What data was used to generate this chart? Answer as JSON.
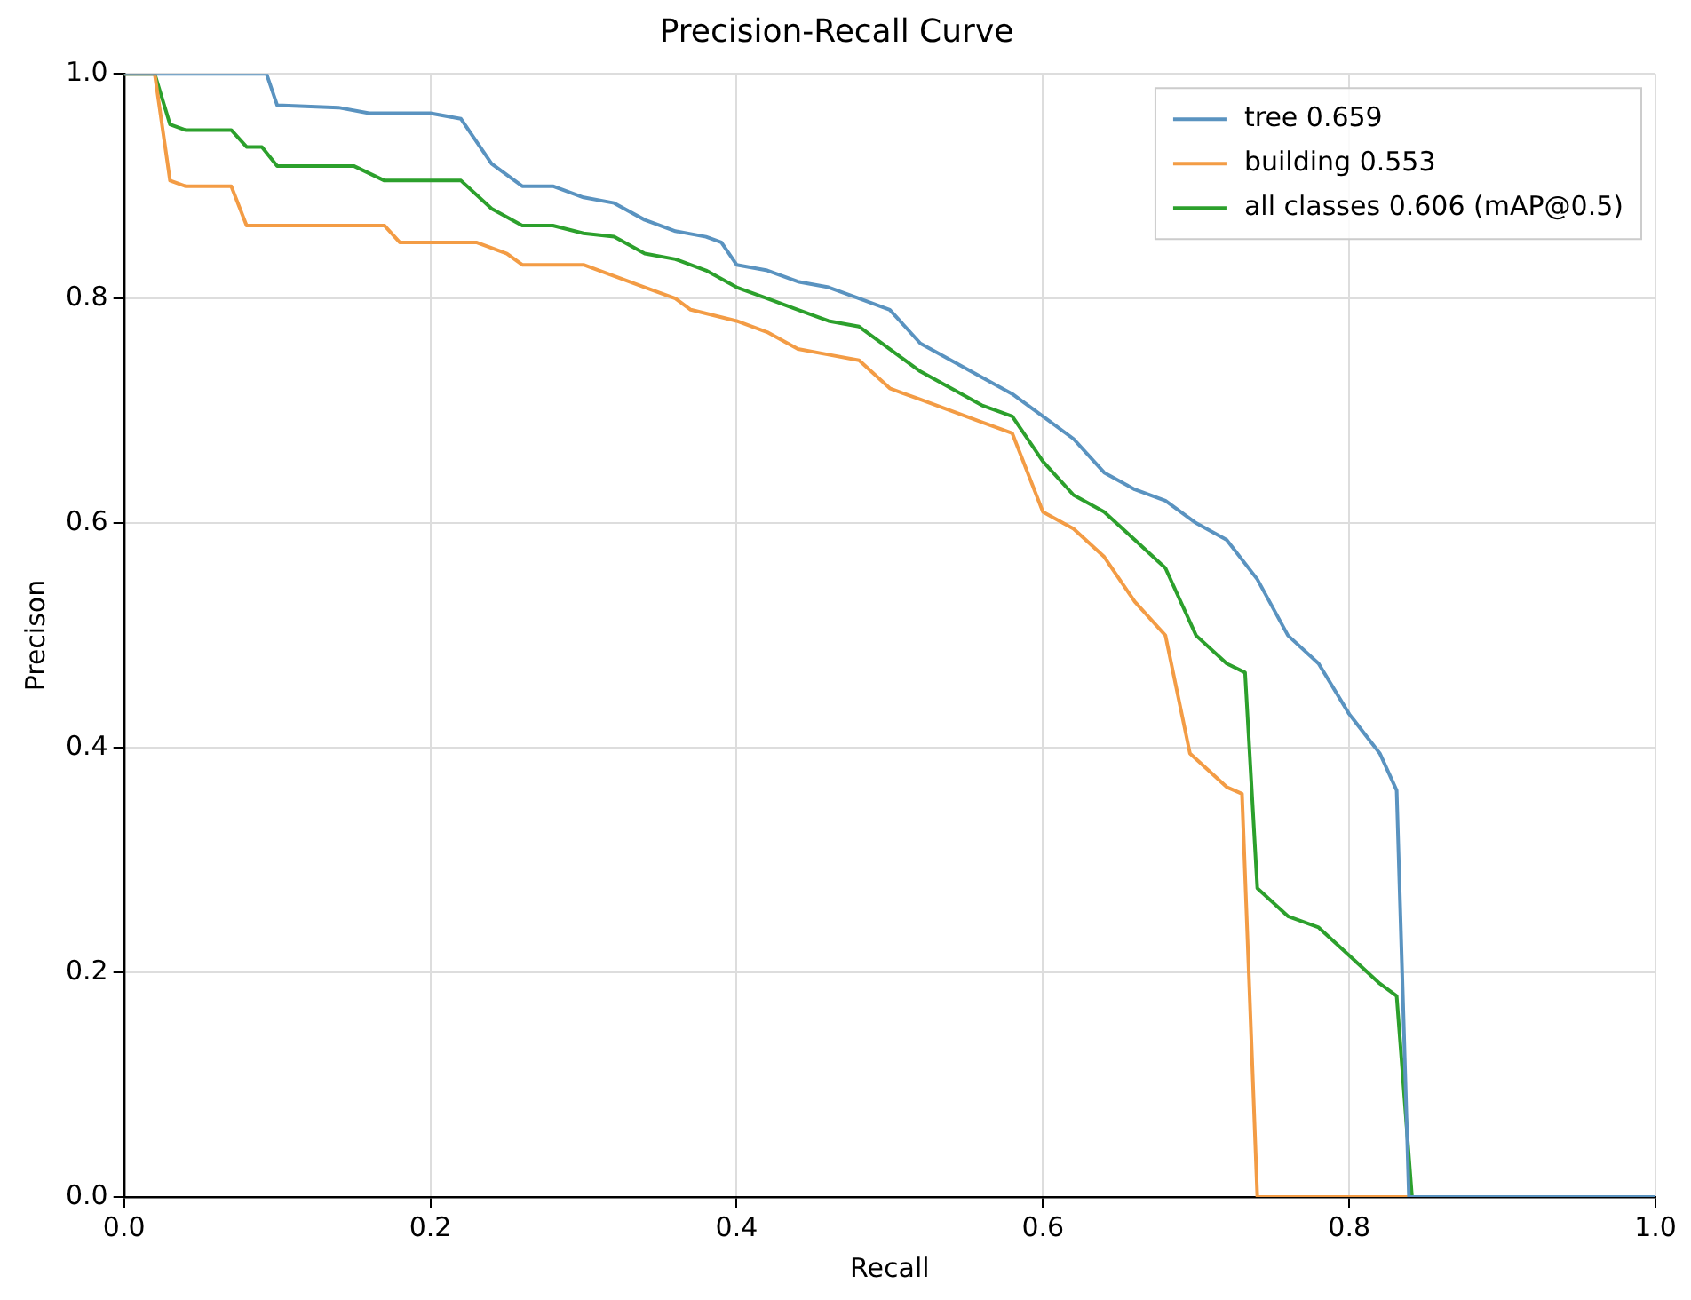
{
  "chart_data": {
    "type": "line",
    "title": "Precision-Recall Curve",
    "xlabel": "Recall",
    "ylabel": "Precison",
    "xlim": [
      0,
      1
    ],
    "ylim": [
      0,
      1
    ],
    "xticks": [
      {
        "value": 0,
        "label": "0.0"
      },
      {
        "value": 0.2,
        "label": "0.2"
      },
      {
        "value": 0.4,
        "label": "0.4"
      },
      {
        "value": 0.6,
        "label": "0.6"
      },
      {
        "value": 0.8,
        "label": "0.8"
      },
      {
        "value": 1,
        "label": "1.0"
      }
    ],
    "yticks": [
      {
        "value": 0,
        "label": "0.0"
      },
      {
        "value": 0.2,
        "label": "0.2"
      },
      {
        "value": 0.4,
        "label": "0.4"
      },
      {
        "value": 0.6,
        "label": "0.6"
      },
      {
        "value": 0.8,
        "label": "0.8"
      },
      {
        "value": 1,
        "label": "1.0"
      }
    ],
    "grid": true,
    "legend": "top right",
    "marker": "none",
    "line_style": "solid",
    "series": [
      {
        "name": "tree 0.659",
        "color": "#5a93c0",
        "x": [
          0,
          0.093,
          0.1,
          0.14,
          0.16,
          0.2,
          0.22,
          0.24,
          0.26,
          0.28,
          0.3,
          0.32,
          0.34,
          0.36,
          0.38,
          0.39,
          0.4,
          0.42,
          0.44,
          0.46,
          0.48,
          0.5,
          0.52,
          0.54,
          0.56,
          0.58,
          0.6,
          0.62,
          0.64,
          0.66,
          0.68,
          0.7,
          0.72,
          0.74,
          0.76,
          0.78,
          0.8,
          0.82,
          0.831,
          0.839,
          1
        ],
        "values": [
          1,
          1,
          0.972,
          0.97,
          0.965,
          0.965,
          0.96,
          0.92,
          0.9,
          0.9,
          0.89,
          0.885,
          0.87,
          0.86,
          0.855,
          0.85,
          0.83,
          0.825,
          0.815,
          0.81,
          0.8,
          0.79,
          0.76,
          0.745,
          0.73,
          0.715,
          0.695,
          0.675,
          0.645,
          0.63,
          0.62,
          0.6,
          0.585,
          0.55,
          0.5,
          0.475,
          0.43,
          0.395,
          0.362,
          0,
          0
        ]
      },
      {
        "name": "building 0.553",
        "color": "#f39c45",
        "x": [
          0,
          0.02,
          0.03,
          0.04,
          0.07,
          0.08,
          0.17,
          0.18,
          0.23,
          0.25,
          0.26,
          0.3,
          0.32,
          0.34,
          0.36,
          0.37,
          0.4,
          0.42,
          0.44,
          0.46,
          0.48,
          0.5,
          0.52,
          0.54,
          0.56,
          0.58,
          0.6,
          0.62,
          0.64,
          0.66,
          0.68,
          0.696,
          0.72,
          0.73,
          0.74,
          1
        ],
        "values": [
          1,
          1,
          0.905,
          0.9,
          0.9,
          0.865,
          0.865,
          0.85,
          0.85,
          0.84,
          0.83,
          0.83,
          0.82,
          0.81,
          0.8,
          0.79,
          0.78,
          0.77,
          0.755,
          0.75,
          0.745,
          0.72,
          0.71,
          0.7,
          0.69,
          0.68,
          0.61,
          0.595,
          0.57,
          0.53,
          0.5,
          0.395,
          0.365,
          0.359,
          0,
          0
        ]
      },
      {
        "name": "all classes 0.606 (mAP@0.5)",
        "color": "#2ca02c",
        "x": [
          0,
          0.02,
          0.03,
          0.04,
          0.07,
          0.08,
          0.09,
          0.1,
          0.15,
          0.17,
          0.22,
          0.24,
          0.26,
          0.28,
          0.3,
          0.32,
          0.34,
          0.36,
          0.38,
          0.4,
          0.42,
          0.44,
          0.46,
          0.48,
          0.5,
          0.52,
          0.54,
          0.56,
          0.58,
          0.6,
          0.62,
          0.64,
          0.66,
          0.68,
          0.7,
          0.72,
          0.732,
          0.74,
          0.76,
          0.78,
          0.8,
          0.82,
          0.831,
          0.841,
          1
        ],
        "values": [
          1,
          1,
          0.955,
          0.95,
          0.95,
          0.935,
          0.935,
          0.918,
          0.918,
          0.905,
          0.905,
          0.88,
          0.865,
          0.865,
          0.858,
          0.855,
          0.84,
          0.835,
          0.825,
          0.81,
          0.8,
          0.79,
          0.78,
          0.775,
          0.755,
          0.735,
          0.72,
          0.705,
          0.695,
          0.655,
          0.625,
          0.61,
          0.585,
          0.56,
          0.5,
          0.475,
          0.467,
          0.275,
          0.25,
          0.24,
          0.215,
          0.19,
          0.179,
          0,
          0
        ]
      }
    ]
  }
}
